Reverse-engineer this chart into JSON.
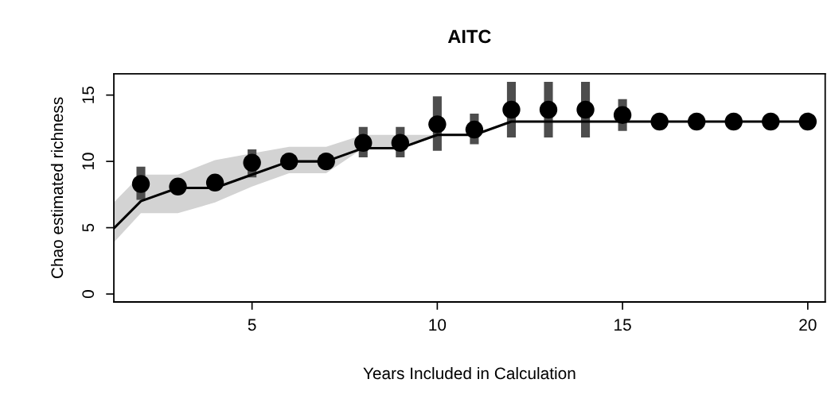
{
  "chart_data": {
    "type": "line",
    "title": "AITC",
    "xlabel": "Years Included in Calculation",
    "ylabel": "Chao estimated richness",
    "xlim": [
      1.27,
      20.47
    ],
    "xticks": [
      5,
      10,
      15,
      20
    ],
    "ylim": [
      -0.6,
      16.6
    ],
    "yticks": [
      0,
      5,
      10,
      15
    ],
    "grid": false,
    "legend": false,
    "series": [
      {
        "color": "#000000",
        "marker": "none",
        "line_style": "solid",
        "x": [
          1.27,
          2,
          3,
          4,
          5,
          6,
          7,
          8,
          9,
          10,
          11,
          12,
          13,
          14,
          15,
          16,
          17,
          18,
          19,
          20
        ],
        "values": [
          4.95,
          7,
          8,
          8,
          9,
          10,
          10,
          11,
          11,
          12,
          12,
          13,
          13,
          13,
          13,
          13,
          13,
          13,
          13,
          13
        ],
        "lower": [
          3.9,
          6.1,
          6.1,
          6.9,
          8.1,
          9.1,
          9.1,
          11,
          11,
          12,
          null,
          null,
          null,
          null,
          null,
          null,
          null,
          null,
          null,
          null
        ],
        "upper": [
          6.9,
          9.0,
          9.0,
          10.1,
          10.6,
          11.1,
          11.1,
          12,
          12,
          12,
          null,
          null,
          null,
          null,
          null,
          null,
          null,
          null,
          null,
          null
        ]
      },
      {
        "type": "scatter",
        "color": "#000000",
        "marker": "circle",
        "x": [
          2,
          3,
          4,
          5,
          6,
          7,
          8,
          9,
          10,
          11,
          12,
          13,
          14,
          15,
          16,
          17,
          18,
          19,
          20
        ],
        "values": [
          8.3,
          8.1,
          8.4,
          9.9,
          10,
          10,
          11.4,
          11.4,
          12.8,
          12.4,
          13.9,
          13.9,
          13.9,
          13.5,
          13,
          13,
          13,
          13,
          13
        ],
        "errors": [
          [
            7.1,
            9.6
          ],
          null,
          null,
          [
            8.8,
            10.9
          ],
          null,
          null,
          [
            10.3,
            12.6
          ],
          [
            10.3,
            12.6
          ],
          [
            10.8,
            14.9
          ],
          [
            11.3,
            13.6
          ],
          [
            11.8,
            16.0
          ],
          [
            11.8,
            16.0
          ],
          [
            11.8,
            16.0
          ],
          [
            12.3,
            14.7
          ],
          null,
          null,
          null,
          null,
          null
        ]
      }
    ]
  }
}
